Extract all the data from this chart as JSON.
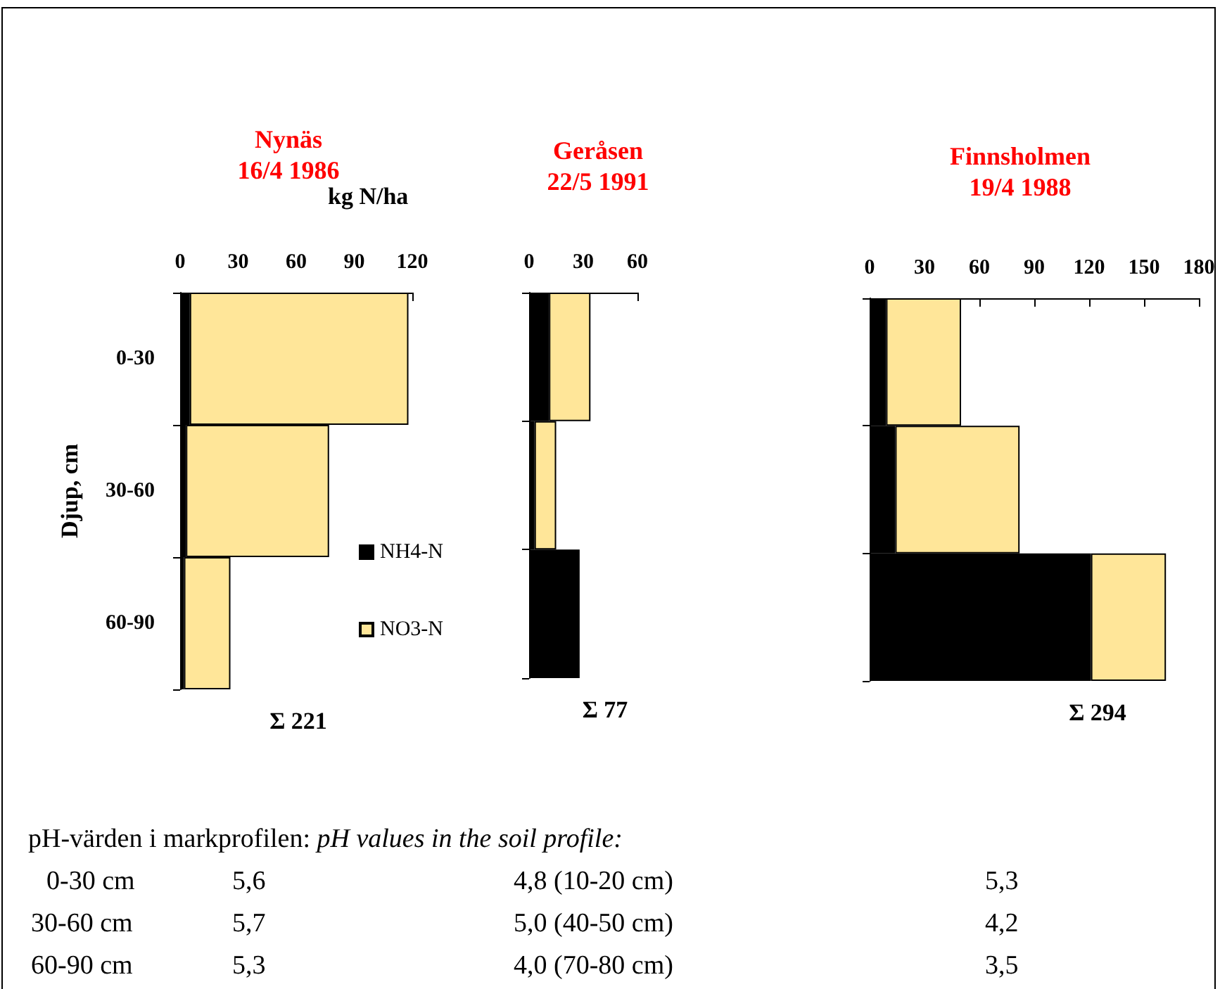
{
  "chart_data": [
    {
      "type": "bar",
      "orientation": "horizontal",
      "stacked": true,
      "title": "Nynäs",
      "subtitle": "16/4 1986",
      "xlabel": "kg N/ha",
      "ylabel": "Djup, cm",
      "categories": [
        "0-30",
        "30-60",
        "60-90"
      ],
      "xlim": [
        0,
        120
      ],
      "xticks": [
        0,
        30,
        60,
        90,
        120
      ],
      "legend": "right",
      "series": [
        {
          "name": "NH4-N",
          "color": "#000000",
          "values": [
            5,
            3,
            2
          ]
        },
        {
          "name": "NO3-N",
          "color": "#ffe699",
          "values": [
            113,
            74,
            24
          ]
        }
      ],
      "annotations": [
        "Σ 221"
      ]
    },
    {
      "type": "bar",
      "orientation": "horizontal",
      "stacked": true,
      "title": "Geråsen",
      "subtitle": "22/5 1991",
      "categories": [
        null,
        null,
        null
      ],
      "xlim": [
        0,
        60
      ],
      "xticks": [
        0,
        30,
        60
      ],
      "series": [
        {
          "color": "#000000",
          "values": [
            11,
            3,
            28
          ]
        },
        {
          "color": "#ffe699",
          "values": [
            23,
            12,
            null
          ]
        }
      ],
      "annotations": [
        "Σ 77"
      ]
    },
    {
      "type": "bar",
      "orientation": "horizontal",
      "stacked": true,
      "title": "Finnsholmen",
      "subtitle": "19/4 1988",
      "categories": [
        null,
        null,
        null
      ],
      "xlim": [
        0,
        180
      ],
      "xticks": [
        0,
        30,
        60,
        90,
        120,
        150,
        180
      ],
      "series": [
        {
          "color": "#000000",
          "values": [
            9,
            14,
            121
          ]
        },
        {
          "color": "#ffe699",
          "values": [
            41,
            68,
            41
          ]
        }
      ],
      "annotations": [
        "Σ 294"
      ]
    },
    {
      "type": "other",
      "title": "pH-värden i markprofilen:",
      "subtitle": "pH values in the soil profile:",
      "annotations": [
        "0-30 cm",
        "5,6",
        "4,8 (10-20 cm)",
        "5,3",
        "30-60 cm",
        "5,7",
        "5,0 (40-50 cm)",
        "4,2",
        "60-90 cm",
        "5,3",
        "4,0 (70-80 cm)",
        "3,5"
      ]
    }
  ]
}
